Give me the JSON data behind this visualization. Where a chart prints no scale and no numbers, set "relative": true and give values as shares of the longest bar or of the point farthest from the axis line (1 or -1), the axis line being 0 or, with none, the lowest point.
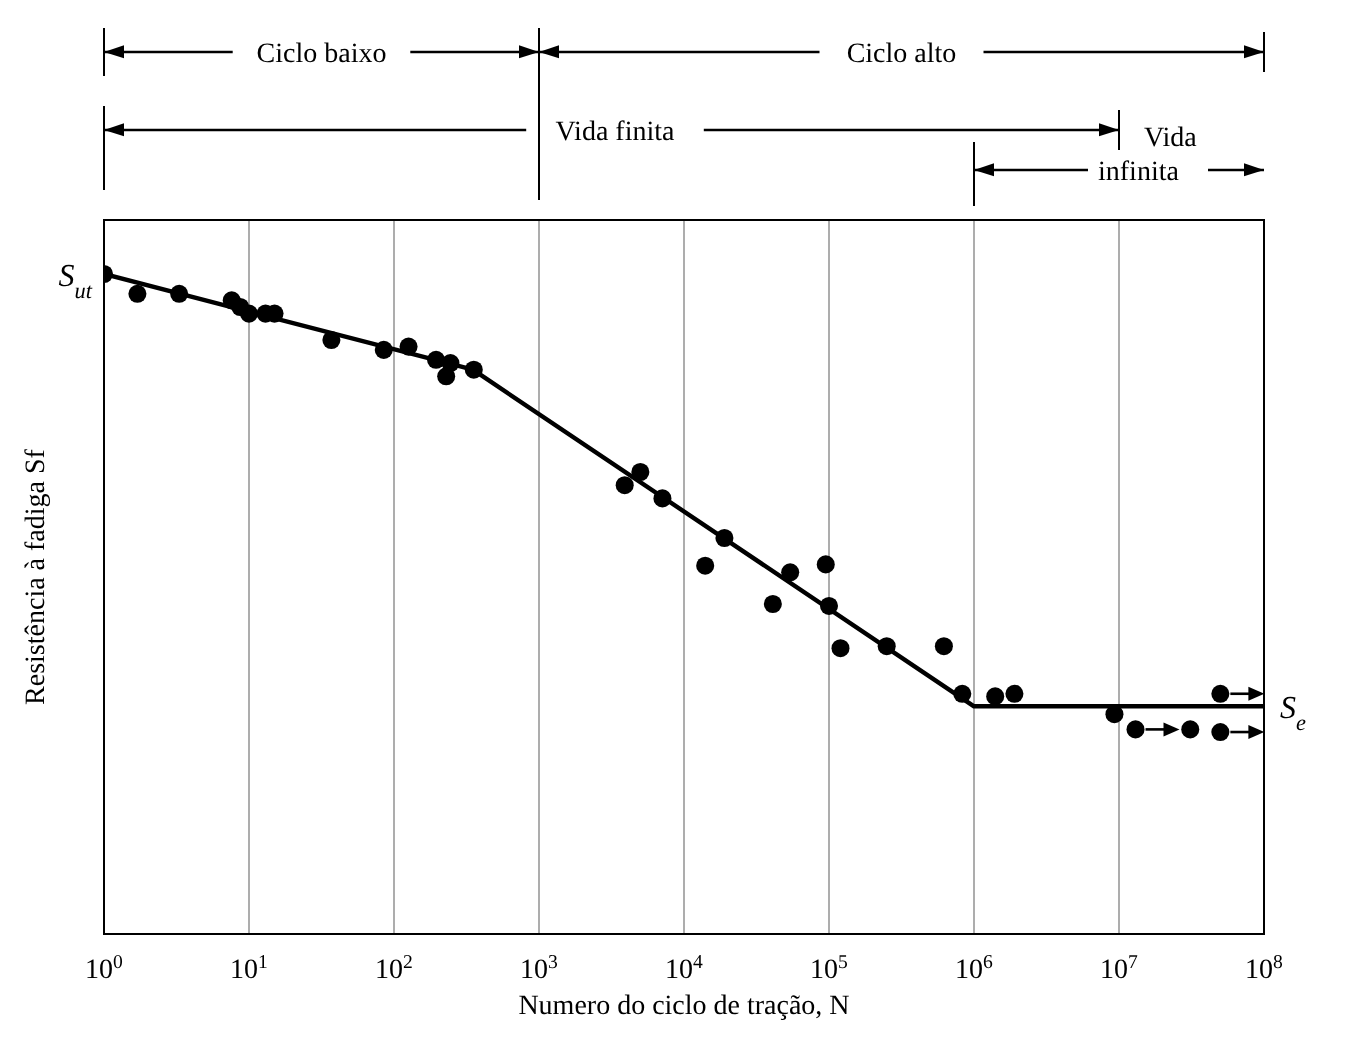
{
  "chart_data": {
    "type": "scatter",
    "relative": true,
    "xlabel": "Numero do ciclo de tração, N",
    "ylabel": "Resistência à fadiga Sf",
    "log": "x",
    "grid": "x",
    "xlim": [
      1,
      100000000
    ],
    "xticks": [
      {
        "value": 1,
        "label": "10$^{0}$"
      },
      {
        "value": 10,
        "label": "10$^{1}$"
      },
      {
        "value": 100,
        "label": "10$^{2}$"
      },
      {
        "value": 1000,
        "label": "10$^{3}$"
      },
      {
        "value": 10000,
        "label": "10$^{4}$"
      },
      {
        "value": 100000,
        "label": "10$^{5}$"
      },
      {
        "value": 1000000,
        "label": "10$^{6}$"
      },
      {
        "value": 10000000,
        "label": "10$^{7}$"
      },
      {
        "value": 100000000,
        "label": "10$^{8}$"
      }
    ],
    "annotations": [
      "Ciclo baixo",
      "Ciclo alto",
      "Vida finita",
      "Vida infinita",
      {
        "text": "S$_{ut}$",
        "x": 1,
        "y": 1
      },
      {
        "text": "S$_{e}$",
        "x": 100000000,
        "y": 0.345
      }
    ],
    "series": [
      {
        "type": "scatter",
        "marker": "circle",
        "color": "#000000",
        "x": [
          1,
          1.7,
          3.3,
          7.6,
          8.7,
          10,
          13,
          15,
          37,
          85,
          126,
          195,
          229,
          245,
          355,
          3900,
          5000,
          7100,
          14000,
          19000,
          41000,
          54000,
          95000,
          100000,
          120000,
          250000,
          620000,
          830000,
          1400000,
          1900000,
          9300000,
          13000000,
          31000000,
          50000000,
          50000000
        ],
        "values": [
          1,
          0.97,
          0.97,
          0.96,
          0.95,
          0.94,
          0.94,
          0.94,
          0.9,
          0.885,
          0.89,
          0.87,
          0.845,
          0.865,
          0.855,
          0.68,
          0.7,
          0.66,
          0.558,
          0.6,
          0.5,
          0.548,
          0.56,
          0.497,
          0.433,
          0.436,
          0.436,
          0.364,
          0.36,
          0.364,
          0.333,
          0.31,
          0.31,
          0.364,
          0.306
        ]
      },
      {
        "type": "line",
        "marker": "none",
        "line_style": "solid",
        "color": "#000000",
        "x": [
          1,
          350,
          1000000,
          100000000
        ],
        "values": [
          1,
          0.855,
          0.345,
          0.345
        ]
      }
    ]
  }
}
